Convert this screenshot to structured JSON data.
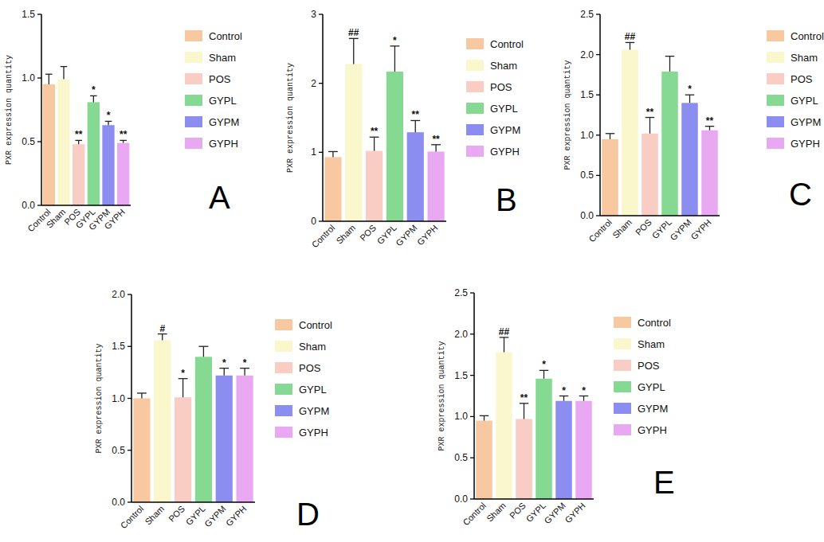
{
  "chart_data": [
    {
      "type": "bar",
      "label": "A",
      "y_label": "PXR expression quantity",
      "categories": [
        "Control",
        "Sham",
        "POS",
        "GYPL",
        "GYPM",
        "GYPH"
      ],
      "values": [
        0.95,
        0.99,
        0.48,
        0.81,
        0.63,
        0.49
      ],
      "errors": [
        0.08,
        0.1,
        0.03,
        0.05,
        0.03,
        0.02
      ],
      "significance": [
        null,
        null,
        "**",
        "*",
        "*",
        "**"
      ],
      "colors": [
        "#f8c8a0",
        "#fbf7cc",
        "#f9ccc4",
        "#86d993",
        "#8b8ef0",
        "#e9a8f2"
      ],
      "ylim": [
        0,
        1.5
      ],
      "yticks": [
        {
          "value": 0,
          "label": "0.0"
        },
        {
          "value": 0.5,
          "label": "0.5"
        },
        {
          "value": 1,
          "label": "1.0"
        },
        {
          "value": 1.5,
          "label": "1.5"
        }
      ],
      "legend": "right",
      "grid": false
    },
    {
      "type": "bar",
      "label": "B",
      "y_label": "PXR expression quantity",
      "categories": [
        "Control",
        "Sham",
        "POS",
        "GYPL",
        "GYPM",
        "GYPH"
      ],
      "values": [
        0.93,
        2.28,
        1.02,
        2.17,
        1.29,
        1.01
      ],
      "errors": [
        0.08,
        0.37,
        0.2,
        0.37,
        0.17,
        0.1
      ],
      "significance": [
        null,
        "##",
        "**",
        "*",
        "**",
        "**"
      ],
      "colors": [
        "#f8c8a0",
        "#fbf7cc",
        "#f9ccc4",
        "#86d993",
        "#8b8ef0",
        "#e9a8f2"
      ],
      "ylim": [
        0,
        3
      ],
      "yticks": [
        0,
        1,
        2,
        3
      ],
      "legend": "right",
      "grid": false
    },
    {
      "type": "bar",
      "label": "C",
      "y_label": "PXR expression quantity",
      "categories": [
        "Control",
        "Sham",
        "POS",
        "GYPL",
        "GYPM",
        "GYPH"
      ],
      "values": [
        0.95,
        2.06,
        1.02,
        1.79,
        1.4,
        1.06
      ],
      "errors": [
        0.07,
        0.09,
        0.2,
        0.19,
        0.1,
        0.05
      ],
      "significance": [
        null,
        "##",
        "**",
        null,
        "*",
        "**"
      ],
      "colors": [
        "#f8c8a0",
        "#fbf7cc",
        "#f9ccc4",
        "#86d993",
        "#8b8ef0",
        "#e9a8f2"
      ],
      "ylim": [
        0,
        2.5
      ],
      "yticks": [
        {
          "value": 0,
          "label": "0.0"
        },
        {
          "value": 0.5,
          "label": "0.5"
        },
        {
          "value": 1,
          "label": "1.0"
        },
        {
          "value": 1.5,
          "label": "1.5"
        },
        {
          "value": 2,
          "label": "2.0"
        },
        {
          "value": 2.5,
          "label": "2.5"
        }
      ],
      "legend": "right",
      "grid": false
    },
    {
      "type": "bar",
      "label": "D",
      "y_label": "PXR expression quantity",
      "categories": [
        "Control",
        "Sham",
        "POS",
        "GYPL",
        "GYPM",
        "GYPH"
      ],
      "values": [
        1.0,
        1.56,
        1.01,
        1.4,
        1.22,
        1.22
      ],
      "errors": [
        0.05,
        0.06,
        0.18,
        0.1,
        0.07,
        0.07
      ],
      "significance": [
        null,
        "#",
        "*",
        null,
        "*",
        "*"
      ],
      "colors": [
        "#f8c8a0",
        "#fbf7cc",
        "#f9ccc4",
        "#86d993",
        "#8b8ef0",
        "#e9a8f2"
      ],
      "ylim": [
        0,
        2
      ],
      "yticks": [
        {
          "value": 0,
          "label": "0.0"
        },
        {
          "value": 0.5,
          "label": "0.5"
        },
        {
          "value": 1,
          "label": "1.0"
        },
        {
          "value": 1.5,
          "label": "1.5"
        },
        {
          "value": 2,
          "label": "2.0"
        }
      ],
      "legend": "right",
      "grid": false
    },
    {
      "type": "bar",
      "label": "E",
      "y_label": "PXR expression quantity",
      "categories": [
        "Control",
        "Sham",
        "POS",
        "GYPL",
        "GYPM",
        "GYPH"
      ],
      "values": [
        0.95,
        1.78,
        0.97,
        1.46,
        1.19,
        1.19
      ],
      "errors": [
        0.06,
        0.18,
        0.19,
        0.1,
        0.06,
        0.06
      ],
      "significance": [
        null,
        "##",
        "**",
        "*",
        "*",
        "*"
      ],
      "colors": [
        "#f8c8a0",
        "#fbf7cc",
        "#f9ccc4",
        "#86d993",
        "#8b8ef0",
        "#e9a8f2"
      ],
      "ylim": [
        0,
        2.5
      ],
      "yticks": [
        {
          "value": 0,
          "label": "0.0"
        },
        {
          "value": 0.5,
          "label": "0.5"
        },
        {
          "value": 1,
          "label": "1.0"
        },
        {
          "value": 1.5,
          "label": "1.5"
        },
        {
          "value": 2,
          "label": "2.0"
        },
        {
          "value": 2.5,
          "label": "2.5"
        }
      ],
      "legend": "right",
      "grid": false
    }
  ]
}
